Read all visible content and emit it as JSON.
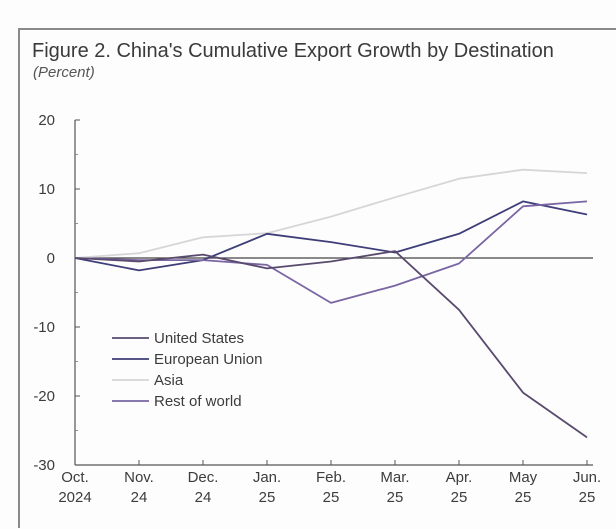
{
  "figure": {
    "title": "Figure 2. China's Cumulative Export Growth by Destination",
    "subtitle": "(Percent)"
  },
  "chart_data": {
    "type": "line",
    "title": "Figure 2. China's Cumulative Export Growth by Destination",
    "subtitle": "(Percent)",
    "xlabel": "",
    "ylabel": "",
    "categories": [
      [
        "Oct.",
        "2024"
      ],
      [
        "Nov.",
        "24"
      ],
      [
        "Dec.",
        "24"
      ],
      [
        "Jan.",
        "25"
      ],
      [
        "Feb.",
        "25"
      ],
      [
        "Mar.",
        "25"
      ],
      [
        "Apr.",
        "25"
      ],
      [
        "May",
        "25"
      ],
      [
        "Jun.",
        "25"
      ]
    ],
    "ylim": [
      -30,
      20
    ],
    "yticks": [
      20,
      10,
      0,
      -10,
      -20,
      -30
    ],
    "grid": false,
    "zero_line": true,
    "legend_position": "lower-left",
    "series": [
      {
        "name": "United States",
        "color": "#5a4a6e",
        "values": [
          0,
          -0.5,
          0.5,
          -1.5,
          -0.5,
          1.0,
          -7.5,
          -19.5,
          -26.0
        ]
      },
      {
        "name": "European Union",
        "color": "#3e3e78",
        "values": [
          0,
          -1.8,
          -0.3,
          3.5,
          2.3,
          0.8,
          3.5,
          8.2,
          6.3
        ]
      },
      {
        "name": "Asia",
        "color": "#d6d6d6",
        "values": [
          0,
          0.7,
          3.0,
          3.6,
          6.0,
          8.8,
          11.5,
          12.8,
          12.3
        ]
      },
      {
        "name": "Rest of world",
        "color": "#7a66a3",
        "values": [
          0,
          -0.3,
          -0.3,
          -1.0,
          -6.5,
          -4.0,
          -0.8,
          7.5,
          8.2
        ]
      }
    ]
  }
}
